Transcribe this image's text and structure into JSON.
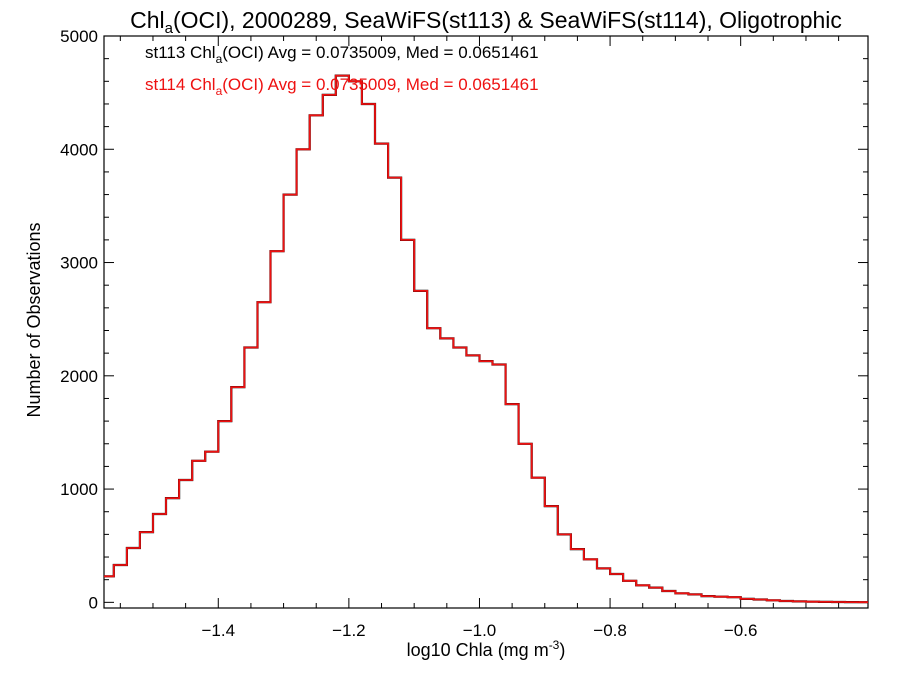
{
  "chart_data": {
    "type": "line",
    "title": {
      "prefix": "Chl",
      "sub": "a",
      "rest": "(OCI), 2000289, SeaWiFS(st113) & SeaWiFS(st114), Oligotrophic"
    },
    "xlabel": {
      "text": "log10 Chla (mg m",
      "sup": "-3",
      "end": ")"
    },
    "ylabel": "Number of Observations",
    "xlim": [
      -1.575,
      -0.405
    ],
    "ylim": [
      -50,
      5000
    ],
    "xticks": [
      -1.4,
      -1.2,
      -1.0,
      -0.8,
      -0.6
    ],
    "xtick_labels": [
      "−1.4",
      "−1.2",
      "−1.0",
      "−0.8",
      "−0.6"
    ],
    "yticks": [
      0,
      1000,
      2000,
      3000,
      4000,
      5000
    ],
    "ytick_labels": [
      "0",
      "1000",
      "2000",
      "3000",
      "4000",
      "5000"
    ],
    "grid": false,
    "annotations": [
      {
        "name": "st113",
        "color": "#000000",
        "prefix": "st113 Chl",
        "sub": "a",
        "rest": "(OCI) Avg = 0.0735009, Med = 0.0651461"
      },
      {
        "name": "st114",
        "color": "#ee1111",
        "prefix": "st114 Chl",
        "sub": "a",
        "rest": "(OCI) Avg = 0.0735009, Med = 0.0651461"
      }
    ],
    "series": [
      {
        "name": "st113",
        "color": "#000000"
      },
      {
        "name": "st114",
        "color": "#ee1111"
      }
    ],
    "x": [
      -1.57,
      -1.55,
      -1.53,
      -1.51,
      -1.49,
      -1.47,
      -1.45,
      -1.43,
      -1.41,
      -1.39,
      -1.37,
      -1.35,
      -1.33,
      -1.31,
      -1.29,
      -1.27,
      -1.25,
      -1.23,
      -1.21,
      -1.19,
      -1.17,
      -1.15,
      -1.13,
      -1.11,
      -1.09,
      -1.07,
      -1.05,
      -1.03,
      -1.01,
      -0.99,
      -0.97,
      -0.95,
      -0.93,
      -0.91,
      -0.89,
      -0.87,
      -0.85,
      -0.83,
      -0.81,
      -0.79,
      -0.77,
      -0.75,
      -0.73,
      -0.71,
      -0.69,
      -0.67,
      -0.65,
      -0.63,
      -0.61,
      -0.59,
      -0.57,
      -0.55,
      -0.53,
      -0.51,
      -0.49,
      -0.47,
      -0.45,
      -0.43,
      -0.41
    ],
    "values": [
      230,
      330,
      480,
      620,
      780,
      920,
      1080,
      1250,
      1330,
      1600,
      1900,
      2250,
      2650,
      3100,
      3600,
      4000,
      4300,
      4480,
      4650,
      4600,
      4400,
      4050,
      3750,
      3200,
      2750,
      2420,
      2330,
      2250,
      2180,
      2130,
      2100,
      1750,
      1400,
      1100,
      850,
      600,
      470,
      380,
      300,
      250,
      190,
      150,
      130,
      100,
      80,
      70,
      55,
      50,
      45,
      30,
      25,
      18,
      12,
      8,
      6,
      4,
      3,
      2,
      1
    ]
  }
}
